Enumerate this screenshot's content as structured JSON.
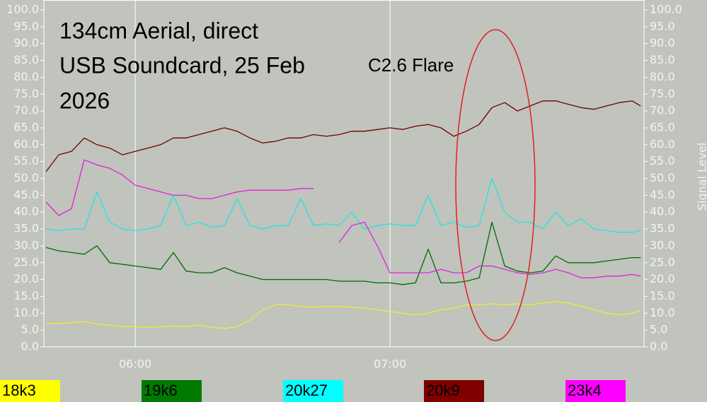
{
  "chart_data": {
    "type": "line",
    "title": [
      "134cm Aerial, direct",
      "USB Soundcard, 25 Feb",
      "2026"
    ],
    "annotation": "C2.6 Flare",
    "y2label": "Signal Level",
    "x": [
      339,
      342,
      345,
      348,
      351,
      354,
      357,
      360,
      363,
      366,
      369,
      372,
      375,
      378,
      381,
      384,
      387,
      390,
      393,
      396,
      399,
      402,
      405,
      408,
      411,
      414,
      417,
      420,
      423,
      426,
      429,
      432,
      435,
      438,
      441,
      444,
      447,
      450,
      453,
      456,
      459,
      462,
      465,
      468,
      471,
      474,
      477,
      479
    ],
    "xlim": [
      338.5,
      479.8
    ],
    "xticks": [
      {
        "value": 360,
        "label": "06:00"
      },
      {
        "value": 420,
        "label": "07:00"
      }
    ],
    "ylim": [
      0,
      100
    ],
    "yticks": [
      {
        "value": 0,
        "label": "0.0"
      },
      {
        "value": 5,
        "label": "5.0"
      },
      {
        "value": 10,
        "label": "10.0"
      },
      {
        "value": 15,
        "label": "15.0"
      },
      {
        "value": 20,
        "label": "20.0"
      },
      {
        "value": 25,
        "label": "25.0"
      },
      {
        "value": 30,
        "label": "30.0"
      },
      {
        "value": 35,
        "label": "35.0"
      },
      {
        "value": 40,
        "label": "40.0"
      },
      {
        "value": 45,
        "label": "45.0"
      },
      {
        "value": 50,
        "label": "50.0"
      },
      {
        "value": 55,
        "label": "55.0"
      },
      {
        "value": 60,
        "label": "60.0"
      },
      {
        "value": 65,
        "label": "65.0"
      },
      {
        "value": 70,
        "label": "70.0"
      },
      {
        "value": 75,
        "label": "75.0"
      },
      {
        "value": 80,
        "label": "80.0"
      },
      {
        "value": 85,
        "label": "85.0"
      },
      {
        "value": 90,
        "label": "90.0"
      },
      {
        "value": 95,
        "label": "95.0"
      },
      {
        "value": 100,
        "label": "100.0"
      }
    ],
    "y2lim": [
      0,
      100
    ],
    "y2ticks": [
      {
        "value": 0,
        "label": "0.0"
      },
      {
        "value": 5,
        "label": "5.0"
      },
      {
        "value": 10,
        "label": "10.0"
      },
      {
        "value": 15,
        "label": "15.0"
      },
      {
        "value": 20,
        "label": "20.0"
      },
      {
        "value": 25,
        "label": "25.0"
      },
      {
        "value": 30,
        "label": "30.0"
      },
      {
        "value": 35,
        "label": "35.0"
      },
      {
        "value": 40,
        "label": "40.0"
      },
      {
        "value": 45,
        "label": "45.0"
      },
      {
        "value": 50,
        "label": "50.0"
      },
      {
        "value": 55,
        "label": "55.0"
      },
      {
        "value": 60,
        "label": "60.0"
      },
      {
        "value": 65,
        "label": "65.0"
      },
      {
        "value": 70,
        "label": "70.0"
      },
      {
        "value": 75,
        "label": "75.0"
      },
      {
        "value": 80,
        "label": "80.0"
      },
      {
        "value": 85,
        "label": "85.0"
      },
      {
        "value": 90,
        "label": "90.0"
      },
      {
        "value": 95,
        "label": "95.0"
      },
      {
        "value": 100,
        "label": "100.0"
      }
    ],
    "grid": true,
    "legend": "bottom",
    "series": [
      {
        "name": "18k3",
        "color": "#f0ec30",
        "legend_color": "#ffff00",
        "values": [
          7,
          7,
          7.2,
          7.5,
          6.8,
          6.5,
          6,
          6,
          5.8,
          6,
          6.2,
          6,
          6.5,
          5.8,
          5.5,
          6,
          8,
          11,
          12.5,
          12.5,
          12,
          11.8,
          12,
          12,
          11.8,
          11.5,
          11,
          10.5,
          10,
          9.5,
          10,
          11,
          11.5,
          12.5,
          12.5,
          12.8,
          12.5,
          12.8,
          12.5,
          13,
          13.5,
          13,
          12,
          11,
          10,
          9.5,
          10,
          10.8
        ]
      },
      {
        "name": "19k6",
        "color": "#006a00",
        "legend_color": "#007a00",
        "values": [
          29.5,
          28.5,
          28,
          27.5,
          30,
          25,
          24.5,
          24,
          23.5,
          23,
          28,
          22.5,
          22,
          22,
          23.5,
          22,
          21,
          20,
          20,
          20,
          20,
          20,
          20,
          19.5,
          19.5,
          19.5,
          19,
          19,
          18.5,
          19,
          29,
          19,
          19,
          19.5,
          20.5,
          37,
          24,
          22.5,
          22,
          22.5,
          27,
          25,
          25,
          25,
          25.5,
          26,
          26.5,
          26.5
        ]
      },
      {
        "name": "20k27",
        "color": "#20e4e4",
        "legend_color": "#00ffff",
        "values": [
          35,
          34.5,
          35,
          35,
          46,
          37,
          35,
          34.5,
          35,
          36,
          45,
          36,
          37,
          35.5,
          36,
          44,
          36,
          35,
          36,
          36,
          44,
          36,
          36.5,
          36,
          40,
          35,
          36,
          36.5,
          36,
          36,
          45,
          36,
          37,
          35.5,
          36,
          50,
          40,
          37,
          37,
          35,
          40,
          36,
          38,
          35,
          34.5,
          34,
          34,
          34.5
        ]
      },
      {
        "name": "20k9",
        "color": "#700000",
        "legend_color": "#800000",
        "values": [
          52,
          57,
          58,
          62,
          60,
          59,
          57,
          58,
          59,
          60,
          62,
          62,
          63,
          64,
          65,
          64,
          62,
          60.5,
          61,
          62,
          62,
          63,
          62.5,
          63,
          64,
          64,
          64.5,
          65,
          64.5,
          65.5,
          66,
          65,
          62.5,
          64,
          66,
          71,
          72.5,
          70,
          71.5,
          73,
          73,
          72,
          71,
          70.5,
          71.5,
          72.5,
          73,
          71.5
        ]
      },
      {
        "name": "23k4",
        "color": "#e020e0",
        "legend_color": "#ff00ff",
        "values": [
          43,
          39,
          41,
          55.5,
          54,
          53,
          51,
          48,
          47,
          46,
          45,
          45,
          44,
          44,
          45,
          46,
          46.5,
          46.5,
          46.5,
          46.5,
          47,
          47,
          null,
          31,
          36,
          37,
          30,
          22,
          22,
          22,
          22,
          23,
          22,
          22,
          24,
          24,
          23,
          22,
          21.5,
          22,
          23,
          22,
          20.5,
          20.5,
          21,
          21,
          21.5,
          21
        ]
      }
    ]
  }
}
